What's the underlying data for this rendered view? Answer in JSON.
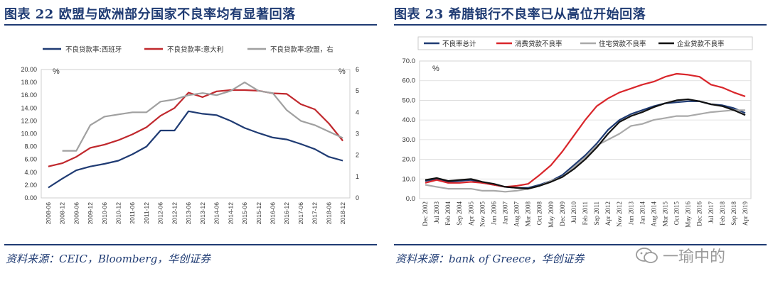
{
  "left": {
    "title": "图表 22   欧盟与欧洲部分国家不良率均有显著回落",
    "source": "资料来源：CEIC，Bloomberg，华创证券",
    "chart_data": {
      "type": "line",
      "x": [
        "2008-06",
        "2008-12",
        "2009-06",
        "2009-12",
        "2010-06",
        "2010-12",
        "2011-06",
        "2011-12",
        "2012-06",
        "2012-12",
        "2013-06",
        "2013-12",
        "2014-06",
        "2014-12",
        "2015-06",
        "2015-12",
        "2016-06",
        "2016-12",
        "2017-06",
        "2017-12",
        "2018-06",
        "2018-12"
      ],
      "x_tick_labels": [
        "2008-06",
        "2008-12",
        "2009-06",
        "2009-12",
        "2010-06",
        "2010-12",
        "2011-06",
        "2011-12",
        "2012-06",
        "2012-12",
        "2013-06",
        "2013-12",
        "2014-06",
        "2014-12",
        "2015-06",
        "2015-12",
        "2016-06",
        "2016-12",
        "2017-06",
        "2017-12",
        "2018-06",
        "2018-12"
      ],
      "y_left": {
        "ticks": [
          "20.00",
          "18.00",
          "16.00",
          "14.00",
          "12.00",
          "10.00",
          "8.00",
          "6.00",
          "4.00",
          "2.00",
          "0.00"
        ],
        "min": 0,
        "max": 20,
        "unit": "%"
      },
      "y_right": {
        "ticks": [
          "6",
          "5",
          "4",
          "3",
          "2",
          "1",
          "0"
        ],
        "min": 0,
        "max": 6,
        "unit": "%"
      },
      "legend": [
        "不良贷款率:西班牙",
        "不良贷款率:意大利",
        "不良贷款率:欧盟，右"
      ],
      "series": [
        {
          "name": "不良贷款率:西班牙",
          "color": "#1f3b73",
          "axis": "left",
          "values": [
            1.6,
            3.0,
            4.3,
            4.9,
            5.3,
            5.8,
            6.8,
            8.0,
            10.5,
            10.5,
            13.5,
            13.1,
            12.9,
            12.0,
            10.9,
            10.1,
            9.4,
            9.1,
            8.4,
            7.6,
            6.4,
            5.8
          ]
        },
        {
          "name": "不良贷款率:意大利",
          "color": "#c0282d",
          "axis": "left",
          "values": [
            4.9,
            5.4,
            6.4,
            7.8,
            8.3,
            9.0,
            9.9,
            11.0,
            12.8,
            14.0,
            16.4,
            15.7,
            16.6,
            16.8,
            16.8,
            16.7,
            16.3,
            16.2,
            14.6,
            13.8,
            11.6,
            8.9
          ]
        },
        {
          "name": "不良贷款率:欧盟，右",
          "color": "#a0a0a0",
          "axis": "right",
          "values": [
            null,
            2.2,
            2.2,
            3.4,
            3.8,
            3.9,
            4.0,
            4.0,
            4.5,
            4.6,
            4.8,
            4.9,
            4.8,
            5.0,
            5.4,
            5.0,
            4.9,
            4.1,
            3.6,
            3.4,
            3.1,
            2.8
          ]
        }
      ]
    }
  },
  "right": {
    "title": "图表 23   希腊银行不良率已从高位开始回落",
    "source": "资料来源：bank of Greece，华创证券",
    "watermark": "一瑜中的",
    "chart_data": {
      "type": "line",
      "x_tick_labels": [
        "Dec 2002",
        "Jul 2003",
        "Feb 2004",
        "Sep 2004",
        "Apr 2005",
        "Nov 2005",
        "Jun 2006",
        "Jan 2007",
        "Aug 2007",
        "Mar 2008",
        "Oct 2008",
        "May 2009",
        "Dec 2009",
        "Jul 2010",
        "Feb 2011",
        "Sep 2011",
        "Apr 2012",
        "Nov 2012",
        "Jun 2013",
        "Jan 2014",
        "Aug 2014",
        "Mar 2015",
        "Oct 2015",
        "May 2016",
        "Dec 2016",
        "Jul 2017",
        "Feb 2018",
        "Sep 2018",
        "Apr 2019"
      ],
      "y": {
        "ticks": [
          "70.0",
          "60.0",
          "50.0",
          "40.0",
          "30.0",
          "20.0",
          "10.0",
          "0.0"
        ],
        "min": 0,
        "max": 70,
        "unit": "%"
      },
      "legend": [
        "不良率总计",
        "消费贷款不良率",
        "住宅贷款不良率",
        "企业贷款不良率"
      ],
      "series": [
        {
          "name": "不良率总计",
          "color": "#1f3b73",
          "values": [
            9.0,
            10.0,
            8.5,
            9.0,
            9.5,
            8.0,
            7.0,
            6.0,
            5.5,
            5.5,
            7.0,
            9.0,
            12.0,
            17.0,
            22.0,
            28.0,
            35.0,
            40.0,
            43.0,
            45.0,
            47.0,
            48.5,
            49.0,
            49.5,
            49.5,
            48.0,
            47.5,
            46.0,
            43.5
          ]
        },
        {
          "name": "消费贷款不良率",
          "color": "#d9262b",
          "values": [
            8.0,
            9.5,
            8.0,
            8.0,
            8.5,
            8.0,
            7.0,
            6.0,
            6.5,
            7.5,
            12.0,
            17.0,
            24.0,
            32.0,
            40.0,
            47.0,
            51.0,
            54.0,
            56.0,
            58.0,
            59.5,
            62.0,
            63.5,
            63.0,
            62.0,
            58.0,
            56.5,
            54.0,
            52.0
          ]
        },
        {
          "name": "住宅贷款不良率",
          "color": "#a9a9a9",
          "values": [
            7.0,
            6.0,
            5.0,
            5.0,
            5.0,
            4.0,
            4.0,
            3.5,
            4.0,
            5.0,
            6.5,
            9.0,
            11.0,
            16.0,
            21.0,
            27.0,
            30.0,
            33.0,
            37.0,
            38.0,
            40.0,
            41.0,
            42.0,
            42.0,
            43.0,
            44.0,
            44.5,
            45.0,
            45.0
          ]
        },
        {
          "name": "企业贷款不良率",
          "color": "#111111",
          "values": [
            9.5,
            10.5,
            9.0,
            9.5,
            10.0,
            8.5,
            7.5,
            6.0,
            5.5,
            5.0,
            6.5,
            8.5,
            11.0,
            15.0,
            20.0,
            26.0,
            33.0,
            39.0,
            42.0,
            44.0,
            46.5,
            48.5,
            50.0,
            50.5,
            49.5,
            48.0,
            47.0,
            45.0,
            42.5
          ]
        }
      ]
    }
  }
}
